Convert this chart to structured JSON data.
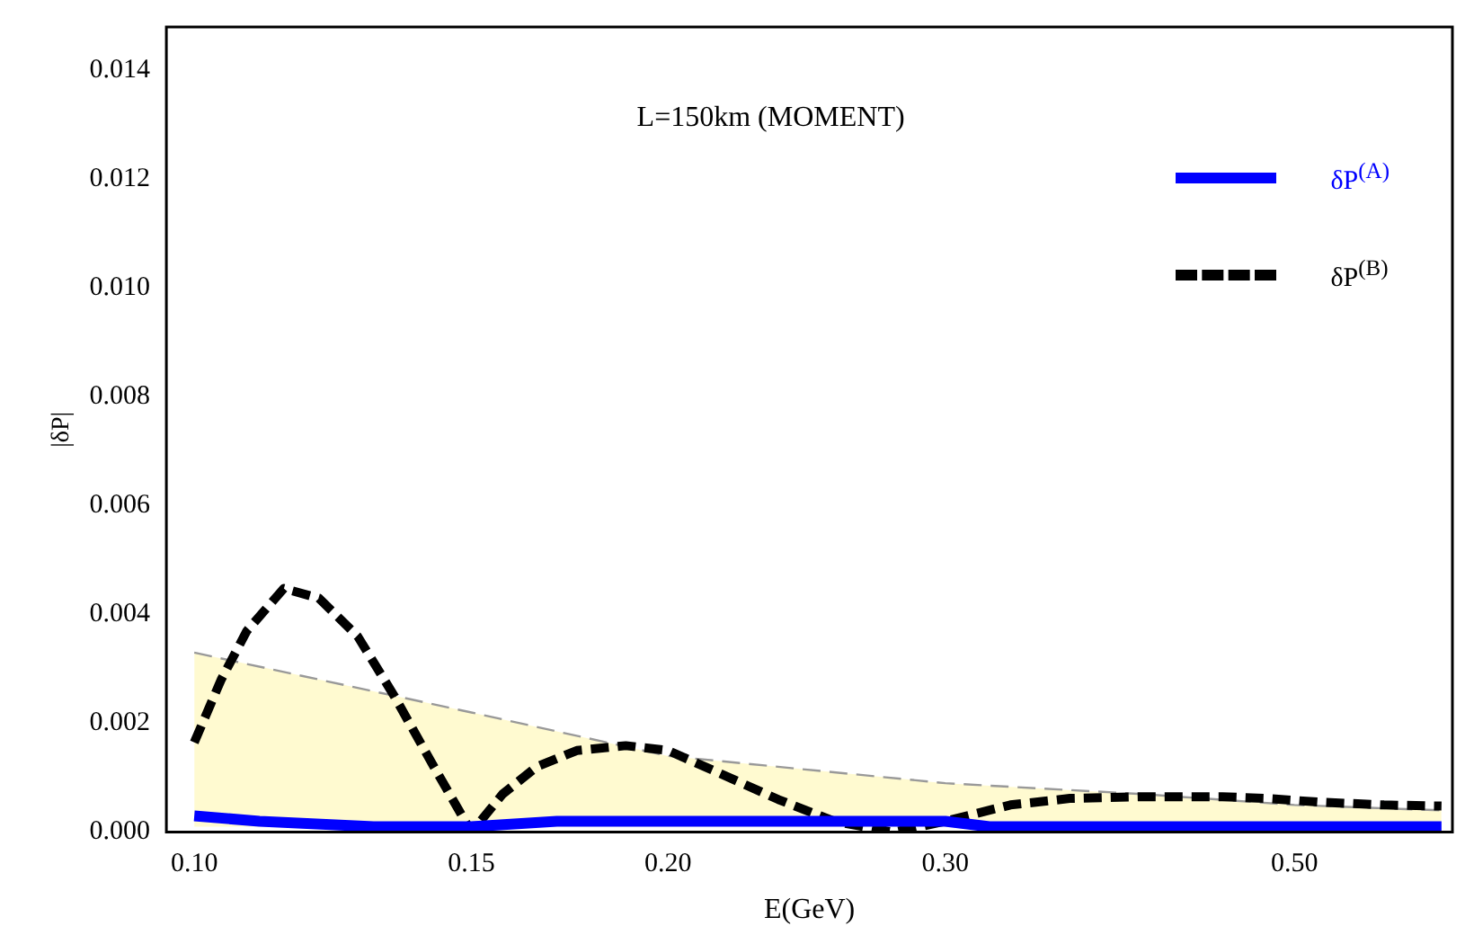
{
  "chart_data": {
    "type": "line",
    "annotations": [
      "L=150km (MOMENT)"
    ],
    "xlabel": "E(GeV)",
    "ylabel": "|δP|",
    "log": "x",
    "xlim": [
      0.096,
      0.63
    ],
    "ylim": [
      0,
      0.0148
    ],
    "xticks": [
      {
        "value": 0.1,
        "label": "0.10"
      },
      {
        "value": 0.15,
        "label": "0.15"
      },
      {
        "value": 0.2,
        "label": "0.20"
      },
      {
        "value": 0.3,
        "label": "0.30"
      },
      {
        "value": 0.5,
        "label": "0.50"
      }
    ],
    "yticks": [
      {
        "value": 0,
        "label": "0.000"
      },
      {
        "value": 0.002,
        "label": "0.002"
      },
      {
        "value": 0.004,
        "label": "0.004"
      },
      {
        "value": 0.006,
        "label": "0.006"
      },
      {
        "value": 0.008,
        "label": "0.008"
      },
      {
        "value": 0.01,
        "label": "0.010"
      },
      {
        "value": 0.012,
        "label": "0.012"
      },
      {
        "value": 0.014,
        "label": "0.014"
      }
    ],
    "grid": false,
    "legend": "top right",
    "marker": "none",
    "series": [
      {
        "color": "#999999",
        "line_style": "dashed",
        "x": [
          0.1,
          0.15,
          0.2,
          0.3,
          0.4,
          0.5,
          0.62
        ],
        "values": [
          0.0033,
          0.0022,
          0.0014,
          0.0009,
          0.0007,
          0.0005,
          0.0004
        ],
        "lower": [
          0.0001,
          0.0001,
          0.0001,
          0.0001,
          0.0001,
          0.0001,
          0.0001
        ],
        "upper": [
          0.0033,
          0.0022,
          0.0014,
          0.0009,
          0.0007,
          0.0005,
          0.0004
        ]
      },
      {
        "name": "δP$^{(A)}$",
        "color": "#0000ff",
        "line_style": "solid",
        "x": [
          0.1,
          0.11,
          0.13,
          0.15,
          0.17,
          0.25,
          0.3,
          0.32,
          0.45,
          0.62
        ],
        "values": [
          0.0003,
          0.0002,
          0.0001,
          0.0001,
          0.0002,
          0.0002,
          0.0002,
          0.0001,
          0.0001,
          0.0001
        ]
      },
      {
        "name": "δP$^{(B)}$",
        "color": "#000000",
        "line_style": "dashed",
        "x": [
          0.1,
          0.104,
          0.108,
          0.114,
          0.12,
          0.127,
          0.134,
          0.142,
          0.15,
          0.157,
          0.165,
          0.175,
          0.188,
          0.2,
          0.215,
          0.235,
          0.255,
          0.278,
          0.3,
          0.33,
          0.36,
          0.4,
          0.45,
          0.48,
          0.52,
          0.57,
          0.62
        ],
        "values": [
          0.00165,
          0.0028,
          0.0037,
          0.00448,
          0.0043,
          0.0036,
          0.0025,
          0.0012,
          0,
          0.0007,
          0.0012,
          0.0015,
          0.00159,
          0.0015,
          0.0011,
          0.0006,
          0.0002,
          0,
          0.0002,
          0.0005,
          0.00062,
          0.00065,
          0.00065,
          0.00062,
          0.00055,
          0.0005,
          0.00048
        ]
      }
    ]
  }
}
